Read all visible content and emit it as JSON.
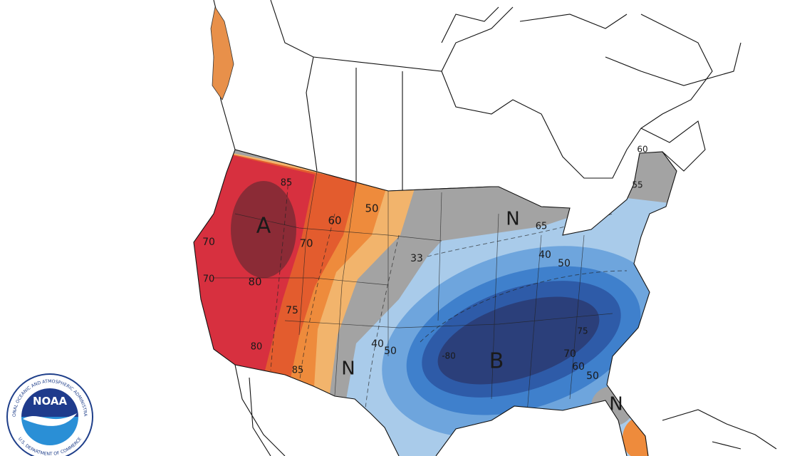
{
  "map": {
    "labels": [
      "A",
      "B",
      "N",
      "N",
      "N",
      "85",
      "60",
      "50",
      "70",
      "80",
      "70",
      "70",
      "75",
      "80",
      "85",
      "33",
      "40",
      "50",
      "-80",
      "40",
      "50",
      "65",
      "75",
      "70",
      "60",
      "50",
      "60",
      "55"
    ]
  },
  "logo": {
    "name": "NOAA",
    "ring_top": "NATIONAL OCEANIC AND ATMOSPHERIC ADMINISTRATION",
    "ring_bottom": "U.S. DEPARTMENT OF COMMERCE"
  }
}
